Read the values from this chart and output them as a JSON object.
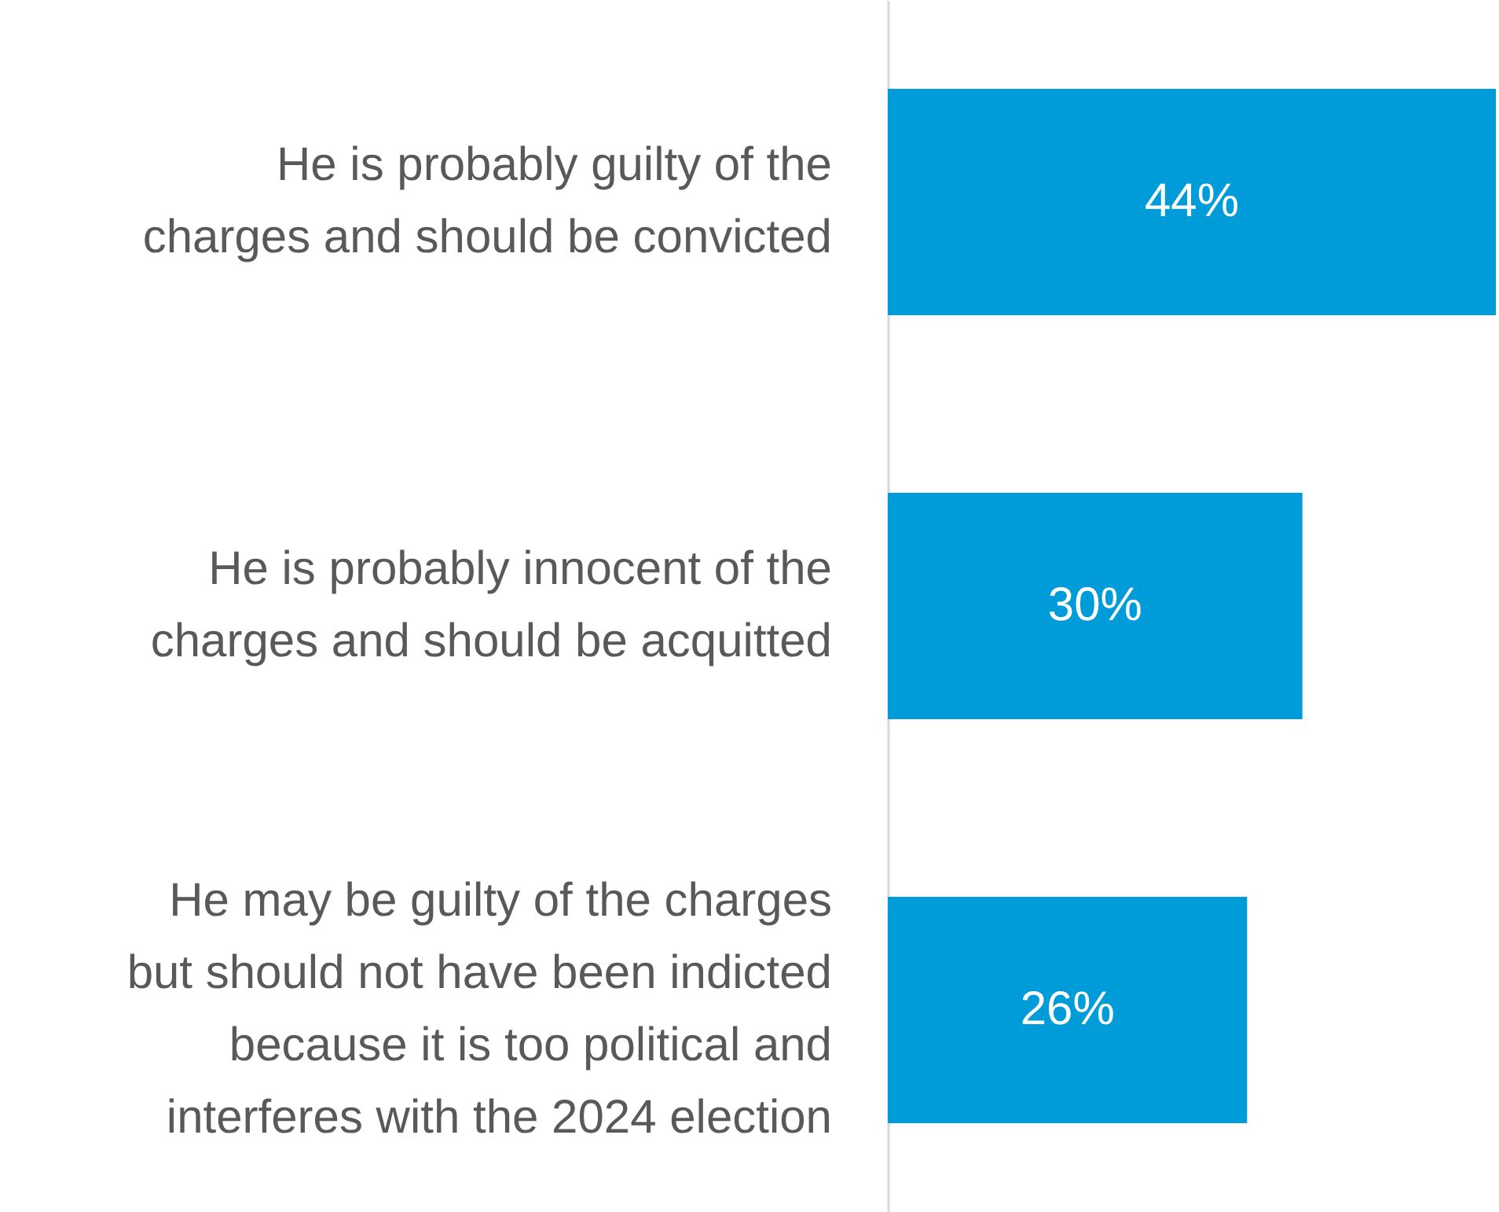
{
  "chart_data": {
    "type": "bar",
    "orientation": "horizontal",
    "categories": [
      "He is probably guilty of the charges and should be convicted",
      "He is probably innocent of the charges and should be acquitted",
      "He may be guilty of the charges but should not have been indicted because it is too political and interferes with the 2024 election"
    ],
    "values": [
      44,
      30,
      26
    ],
    "color": "#009cd9",
    "value_labels": [
      "44%",
      "30%",
      "26%"
    ]
  }
}
